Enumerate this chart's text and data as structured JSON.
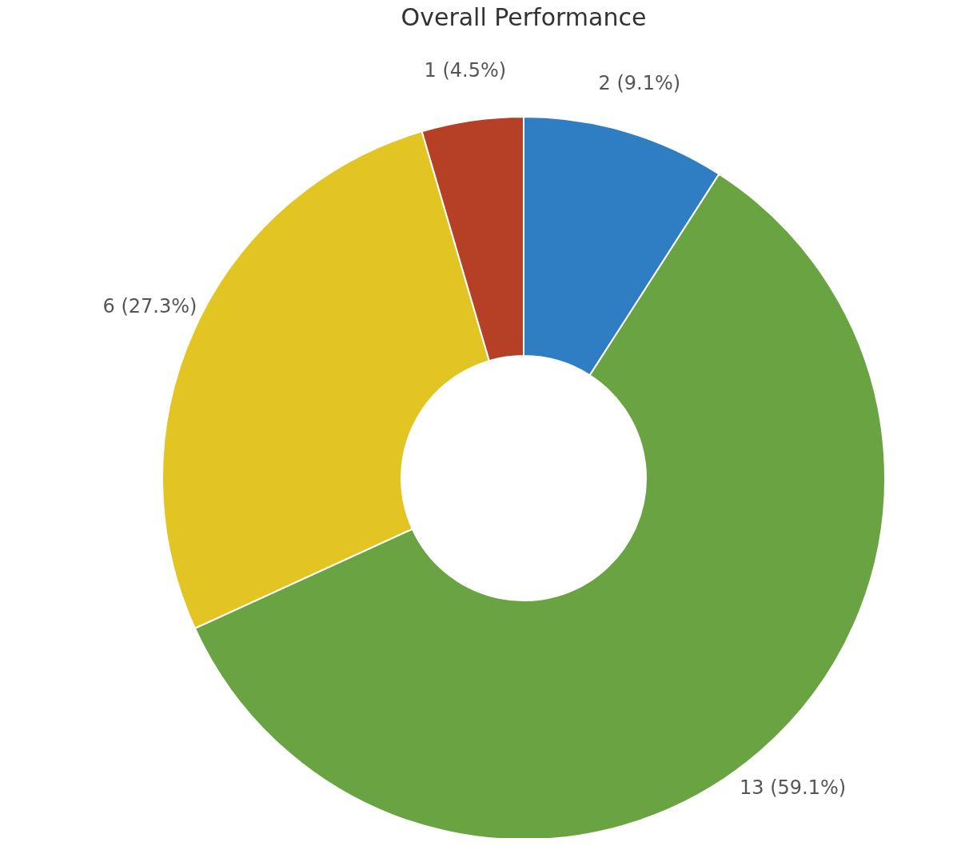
{
  "chart_data": {
    "type": "donut",
    "title": "Overall Performance",
    "categories": [
      null,
      null,
      null,
      null
    ],
    "values": [
      2,
      13,
      6,
      1
    ],
    "colors": [
      "#2f7ec3",
      "#6aa341",
      "#e2c422",
      "#b54026"
    ],
    "value_labels": [
      "2 (9.1%)",
      "13 (59.1%)",
      "6 (27.3%)",
      "1 (4.5%)"
    ]
  }
}
